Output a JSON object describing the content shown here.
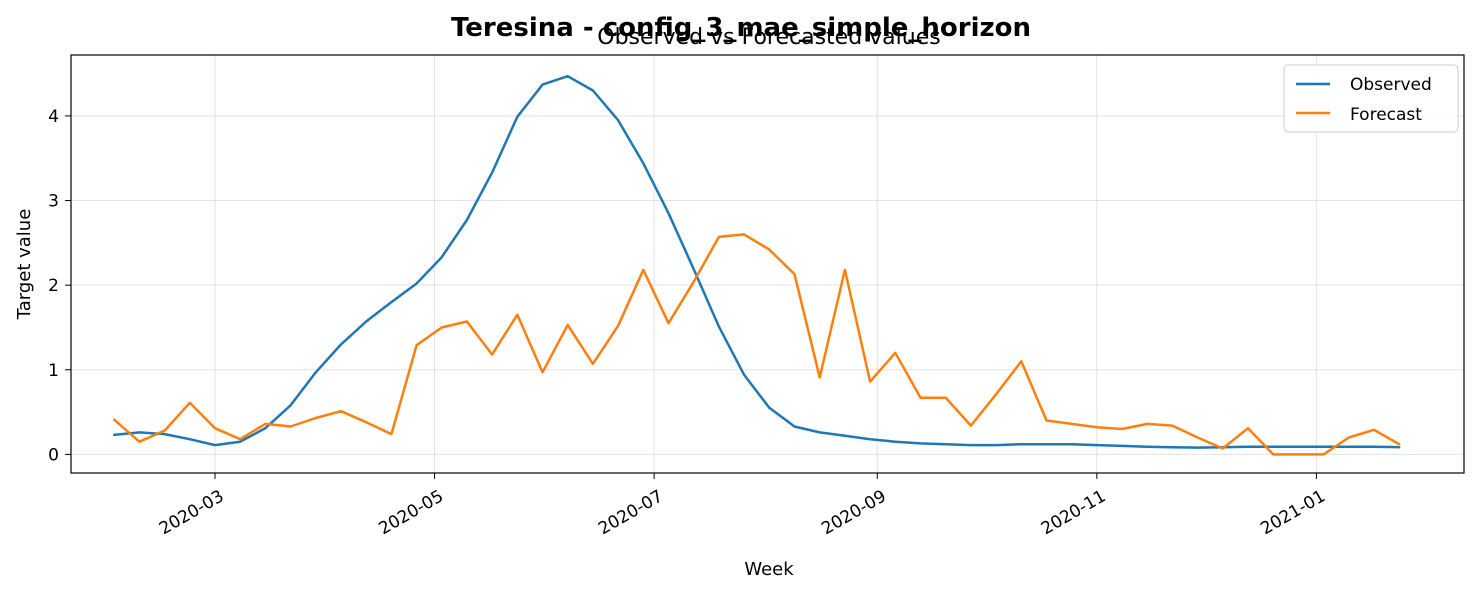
{
  "chart_data": {
    "type": "line",
    "title": "Teresina - config_3_mae_simple_horizon",
    "subtitle": "Observed vs Forecasted values",
    "xlabel": "Week",
    "ylabel": "Target value",
    "grid": true,
    "legend_position": "top-right",
    "x_ticks": [
      "2020-03",
      "2020-05",
      "2020-07",
      "2020-09",
      "2020-11",
      "2021-01"
    ],
    "y_ticks": [
      0,
      1,
      2,
      3,
      4
    ],
    "x_range": [
      "2020-01-21",
      "2021-02-11"
    ],
    "ylim": [
      -0.22,
      4.72
    ],
    "x": [
      "2020-02-02",
      "2020-02-09",
      "2020-02-16",
      "2020-02-23",
      "2020-03-01",
      "2020-03-08",
      "2020-03-15",
      "2020-03-22",
      "2020-03-29",
      "2020-04-05",
      "2020-04-12",
      "2020-04-19",
      "2020-04-26",
      "2020-05-03",
      "2020-05-10",
      "2020-05-17",
      "2020-05-24",
      "2020-05-31",
      "2020-06-07",
      "2020-06-14",
      "2020-06-21",
      "2020-06-28",
      "2020-07-05",
      "2020-07-12",
      "2020-07-19",
      "2020-07-26",
      "2020-08-02",
      "2020-08-09",
      "2020-08-16",
      "2020-08-23",
      "2020-08-30",
      "2020-09-06",
      "2020-09-13",
      "2020-09-20",
      "2020-09-27",
      "2020-10-04",
      "2020-10-11",
      "2020-10-18",
      "2020-10-25",
      "2020-11-01",
      "2020-11-08",
      "2020-11-15",
      "2020-11-22",
      "2020-11-29",
      "2020-12-06",
      "2020-12-13",
      "2020-12-20",
      "2020-12-27",
      "2021-01-03",
      "2021-01-10",
      "2021-01-17",
      "2021-01-24"
    ],
    "series": [
      {
        "name": "Observed",
        "color": "#1f77b4",
        "values": [
          0.23,
          0.26,
          0.24,
          0.18,
          0.11,
          0.15,
          0.31,
          0.58,
          0.97,
          1.3,
          1.57,
          1.8,
          2.02,
          2.33,
          2.77,
          3.33,
          3.99,
          4.37,
          4.47,
          4.3,
          3.95,
          3.44,
          2.85,
          2.19,
          1.51,
          0.94,
          0.55,
          0.33,
          0.26,
          0.22,
          0.18,
          0.15,
          0.13,
          0.12,
          0.11,
          0.11,
          0.12,
          0.12,
          0.12,
          0.11,
          0.1,
          0.09,
          0.085,
          0.08,
          0.085,
          0.09,
          0.09,
          0.09,
          0.09,
          0.09,
          0.09,
          0.085
        ]
      },
      {
        "name": "Forecast",
        "color": "#ff7f0e",
        "values": [
          0.41,
          0.15,
          0.28,
          0.61,
          0.31,
          0.18,
          0.36,
          0.33,
          0.43,
          0.51,
          0.38,
          0.24,
          1.29,
          1.5,
          1.57,
          1.18,
          1.65,
          0.97,
          1.53,
          1.07,
          1.52,
          2.18,
          1.55,
          2.04,
          2.57,
          2.6,
          2.42,
          2.13,
          0.91,
          2.18,
          0.86,
          1.2,
          0.67,
          0.67,
          0.34,
          0.71,
          1.1,
          0.4,
          0.36,
          0.32,
          0.3,
          0.36,
          0.34,
          0.2,
          0.07,
          0.31,
          0.0,
          0.0,
          0.0,
          0.2,
          0.29,
          0.12
        ]
      }
    ]
  }
}
